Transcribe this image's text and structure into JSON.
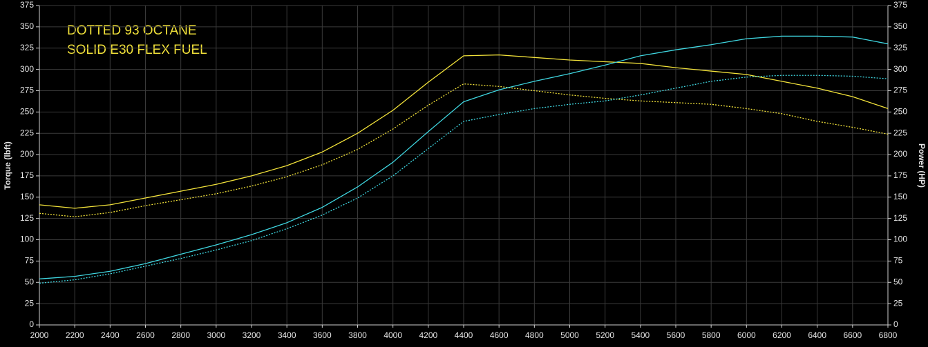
{
  "chart_data": {
    "type": "line",
    "annotations": [
      "DOTTED 93 OCTANE",
      "SOLID E30 FLEX FUEL"
    ],
    "ylabel": "Torque (lbft)",
    "y2label": "Power (HP)",
    "x": [
      2000,
      2200,
      2400,
      2600,
      2800,
      3000,
      3200,
      3400,
      3600,
      3800,
      4000,
      4200,
      4400,
      4600,
      4800,
      5000,
      5200,
      5400,
      5600,
      5800,
      6000,
      6200,
      6400,
      6600,
      6800
    ],
    "series": [
      {
        "color": "#f2e23a",
        "style": "solid",
        "values": [
          141,
          137,
          141,
          149,
          157,
          165,
          175,
          187,
          203,
          225,
          252,
          285,
          316,
          317,
          314,
          311,
          309,
          307,
          302,
          298,
          294,
          286,
          278,
          268,
          254
        ]
      },
      {
        "color": "#f2e23a",
        "style": "dotted",
        "values": [
          131,
          127,
          132,
          140,
          147,
          154,
          163,
          174,
          188,
          206,
          230,
          258,
          283,
          280,
          275,
          270,
          266,
          263,
          261,
          259,
          254,
          248,
          239,
          232,
          224
        ]
      },
      {
        "color": "#3fd6e0",
        "style": "solid",
        "axis": "y2",
        "values": [
          54,
          57,
          63,
          72,
          83,
          94,
          106,
          120,
          138,
          162,
          191,
          227,
          262,
          276,
          286,
          295,
          305,
          316,
          323,
          329,
          336,
          339,
          339,
          338,
          330
        ]
      },
      {
        "color": "#3fd6e0",
        "style": "dotted",
        "axis": "y2",
        "values": [
          49,
          53,
          60,
          69,
          78,
          88,
          99,
          113,
          129,
          149,
          175,
          207,
          239,
          247,
          254,
          259,
          263,
          270,
          278,
          286,
          291,
          293,
          293,
          292,
          289
        ]
      }
    ],
    "xlim": [
      2000,
      6800
    ],
    "xticks": [
      2000,
      2200,
      2400,
      2600,
      2800,
      3000,
      3200,
      3400,
      3600,
      3800,
      4000,
      4200,
      4400,
      4600,
      4800,
      5000,
      5200,
      5400,
      5600,
      5800,
      6000,
      6200,
      6400,
      6600,
      6800
    ],
    "ylim": [
      0,
      375
    ],
    "yticks": [
      0,
      25,
      50,
      75,
      100,
      125,
      150,
      175,
      200,
      225,
      250,
      275,
      300,
      325,
      350,
      375
    ],
    "y2lim": [
      0,
      375
    ],
    "y2ticks": [
      0,
      25,
      50,
      75,
      100,
      125,
      150,
      175,
      200,
      225,
      250,
      275,
      300,
      325,
      350,
      375
    ],
    "grid": true
  }
}
